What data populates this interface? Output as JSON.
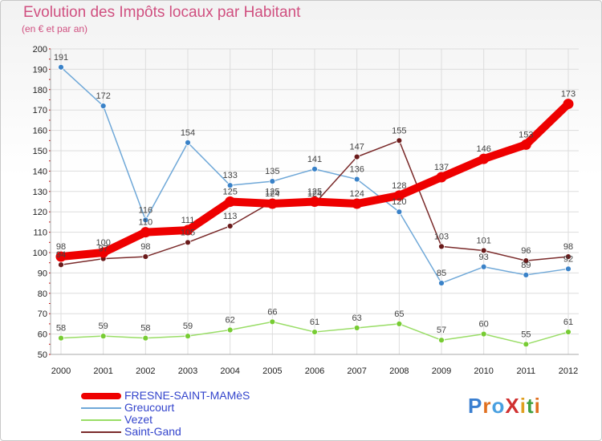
{
  "title": "Evolution des Impôts locaux par Habitant",
  "subtitle": "(en € et par an)",
  "chart_data": {
    "type": "line",
    "title": "Evolution des Impôts locaux par Habitant",
    "ylabel": "(en € et par an)",
    "xlabel": "",
    "categories": [
      "2000",
      "2001",
      "2002",
      "2003",
      "2004",
      "2005",
      "2006",
      "2007",
      "2008",
      "2009",
      "2010",
      "2011",
      "2012"
    ],
    "yticks": [
      50,
      60,
      70,
      80,
      90,
      100,
      110,
      120,
      130,
      140,
      150,
      160,
      170,
      180,
      190,
      200
    ],
    "ylim": [
      50,
      200
    ],
    "grid": true,
    "series": [
      {
        "name": "FRESNE-SAINT-MAMèS",
        "color": "#ee0000",
        "point_color": "#ee0000",
        "values": [
          98,
          100,
          110,
          111,
          125,
          124,
          125,
          124,
          128,
          137,
          146,
          153,
          173
        ]
      },
      {
        "name": "Greucourt",
        "color": "#6fa8d8",
        "point_color": "#3a82c8",
        "values": [
          191,
          172,
          116,
          154,
          133,
          135,
          141,
          136,
          120,
          85,
          93,
          89,
          92
        ]
      },
      {
        "name": "Vezet",
        "color": "#99dd66",
        "point_color": "#77cc33",
        "values": [
          58,
          59,
          58,
          59,
          62,
          66,
          61,
          63,
          65,
          57,
          60,
          55,
          61
        ]
      },
      {
        "name": "Saint-Gand",
        "color": "#7a2a2a",
        "point_color": "#6a1a1a",
        "values": [
          94,
          97,
          98,
          105,
          113,
          125,
          124,
          147,
          155,
          103,
          101,
          96,
          98
        ]
      }
    ],
    "legend_position": "bottom-left"
  },
  "legend": {
    "items": [
      {
        "name": "FRESNE-SAINT-MAMèS",
        "color": "#ee0000",
        "text_color": "#3344cc"
      },
      {
        "name": "Greucourt",
        "color": "#6fa8d8",
        "text_color": "#3344cc"
      },
      {
        "name": "Vezet",
        "color": "#99dd66",
        "text_color": "#3344cc"
      },
      {
        "name": "Saint-Gand",
        "color": "#7a2a2a",
        "text_color": "#3344cc"
      }
    ]
  },
  "logo": {
    "text": "ProXiti",
    "colors": [
      "#3a7fd0",
      "#e07020",
      "#4aa0e0",
      "#d03030",
      "#e0a020",
      "#40a040",
      "#e07020"
    ]
  }
}
